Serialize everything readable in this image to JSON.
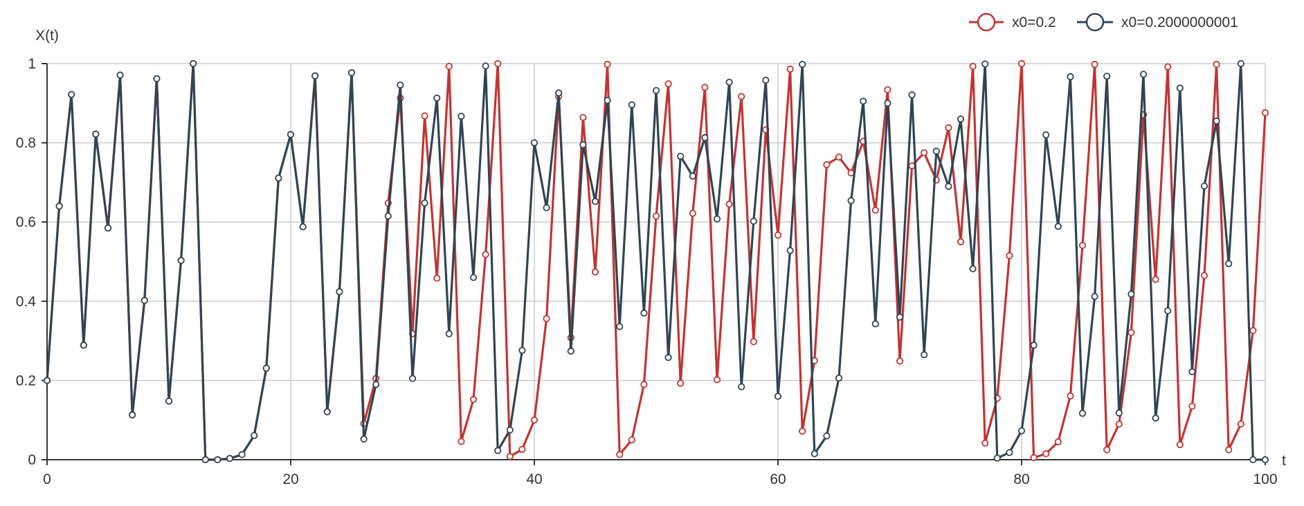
{
  "chart_data": {
    "type": "line",
    "xlabel": "t",
    "ylabel": "X(t)",
    "xlim": [
      0,
      100
    ],
    "ylim": [
      0,
      1
    ],
    "x_ticks": [
      "0",
      "20",
      "40",
      "60",
      "80",
      "100"
    ],
    "y_ticks": [
      "0",
      "0.2",
      "0.4",
      "0.6",
      "0.8",
      "1"
    ],
    "grid": true,
    "legend_position": "top-right",
    "x": [
      0,
      1,
      2,
      3,
      4,
      5,
      6,
      7,
      8,
      9,
      10,
      11,
      12,
      13,
      14,
      15,
      16,
      17,
      18,
      19,
      20,
      21,
      22,
      23,
      24,
      25,
      26,
      27,
      28,
      29,
      30,
      31,
      32,
      33,
      34,
      35,
      36,
      37,
      38,
      39,
      40,
      41,
      42,
      43,
      44,
      45,
      46,
      47,
      48,
      49,
      50,
      51,
      52,
      53,
      54,
      55,
      56,
      57,
      58,
      59,
      60,
      61,
      62,
      63,
      64,
      65,
      66,
      67,
      68,
      69,
      70,
      71,
      72,
      73,
      74,
      75,
      76,
      77,
      78,
      79,
      80,
      81,
      82,
      83,
      84,
      85,
      86,
      87,
      88,
      89,
      90,
      91,
      92,
      93,
      94,
      95,
      96,
      97,
      98,
      99,
      100
    ],
    "series": [
      {
        "name": "x0=0.2",
        "color": "#c23531",
        "values": [
          0.2,
          0.64,
          0.922,
          0.289,
          0.822,
          0.585,
          0.971,
          0.113,
          0.402,
          0.962,
          0.148,
          0.503,
          1.0,
          0.0,
          0.0,
          0.003,
          0.013,
          0.061,
          0.231,
          0.711,
          0.821,
          0.588,
          0.969,
          0.121,
          0.424,
          0.977,
          0.091,
          0.205,
          0.648,
          0.913,
          0.318,
          0.868,
          0.458,
          0.993,
          0.046,
          0.152,
          0.518,
          1.0,
          0.008,
          0.026,
          0.1,
          0.356,
          0.917,
          0.308,
          0.864,
          0.474,
          0.998,
          0.013,
          0.05,
          0.19,
          0.615,
          0.949,
          0.193,
          0.622,
          0.94,
          0.202,
          0.645,
          0.917,
          0.298,
          0.833,
          0.567,
          0.986,
          0.072,
          0.25,
          0.745,
          0.764,
          0.724,
          0.804,
          0.63,
          0.934,
          0.249,
          0.742,
          0.775,
          0.706,
          0.838,
          0.55,
          0.993,
          0.042,
          0.155,
          0.515,
          1.0,
          0.005,
          0.015,
          0.045,
          0.161,
          0.541,
          0.998,
          0.025,
          0.09,
          0.321,
          0.871,
          0.455,
          0.992,
          0.038,
          0.135,
          0.465,
          0.998,
          0.025,
          0.09,
          0.326,
          0.876
        ]
      },
      {
        "name": "x0=0.2000000001",
        "color": "#2f4554",
        "values": [
          0.2,
          0.64,
          0.922,
          0.289,
          0.822,
          0.585,
          0.971,
          0.113,
          0.402,
          0.962,
          0.148,
          0.503,
          1.0,
          0.0,
          0.0,
          0.003,
          0.013,
          0.061,
          0.231,
          0.711,
          0.821,
          0.588,
          0.969,
          0.121,
          0.424,
          0.977,
          0.052,
          0.19,
          0.615,
          0.946,
          0.205,
          0.648,
          0.913,
          0.318,
          0.867,
          0.46,
          0.994,
          0.023,
          0.075,
          0.276,
          0.8,
          0.636,
          0.926,
          0.274,
          0.795,
          0.652,
          0.907,
          0.336,
          0.896,
          0.37,
          0.932,
          0.258,
          0.766,
          0.716,
          0.813,
          0.608,
          0.953,
          0.184,
          0.602,
          0.958,
          0.16,
          0.528,
          0.998,
          0.015,
          0.06,
          0.206,
          0.654,
          0.905,
          0.343,
          0.9,
          0.36,
          0.921,
          0.265,
          0.779,
          0.69,
          0.86,
          0.482,
          0.999,
          0.004,
          0.018,
          0.073,
          0.289,
          0.82,
          0.589,
          0.967,
          0.117,
          0.412,
          0.968,
          0.118,
          0.418,
          0.973,
          0.105,
          0.376,
          0.938,
          0.222,
          0.691,
          0.855,
          0.495,
          1.0,
          0.0,
          0.0
        ]
      }
    ]
  }
}
